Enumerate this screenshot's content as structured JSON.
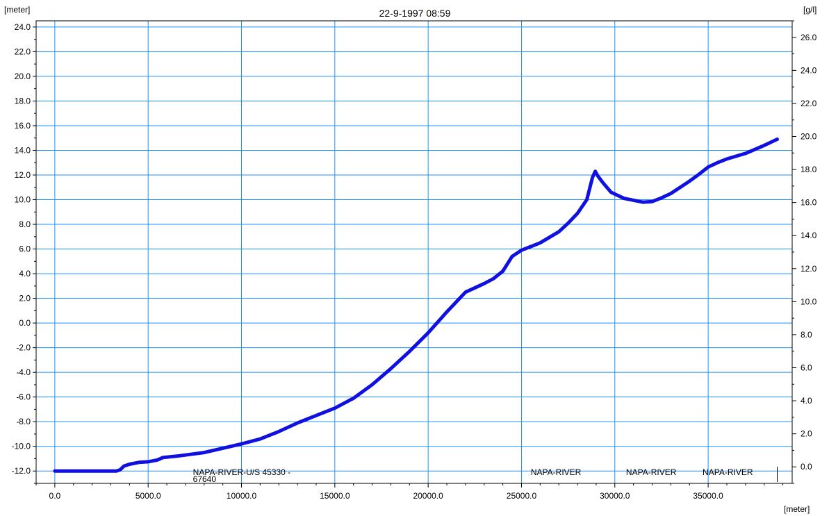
{
  "chart_data": {
    "type": "line",
    "title": "22-9-1997 08:59",
    "y_left_unit": "[meter]",
    "y_right_unit": "[g/l]",
    "x_unit": "[meter]",
    "xlim": [
      -1000,
      39500
    ],
    "ylim_left": [
      -13.0,
      24.5
    ],
    "ylim_right": [
      -1.0,
      27.0
    ],
    "grid": true,
    "x_ticks": [
      "0.0",
      "5000.0",
      "10000.0",
      "15000.0",
      "20000.0",
      "25000.0",
      "30000.0",
      "35000.0"
    ],
    "x_tick_values": [
      0,
      5000,
      10000,
      15000,
      20000,
      25000,
      30000,
      35000
    ],
    "y_left_ticks": [
      "-12.0",
      "-10.0",
      "-8.0",
      "-6.0",
      "-4.0",
      "-2.0",
      "0.0",
      "2.0",
      "4.0",
      "6.0",
      "8.0",
      "10.0",
      "12.0",
      "14.0",
      "16.0",
      "18.0",
      "20.0",
      "22.0",
      "24.0"
    ],
    "y_left_tick_values": [
      -12,
      -10,
      -8,
      -6,
      -4,
      -2,
      0,
      2,
      4,
      6,
      8,
      10,
      12,
      14,
      16,
      18,
      20,
      22,
      24
    ],
    "y_right_ticks": [
      "0.0",
      "2.0",
      "4.0",
      "6.0",
      "8.0",
      "10.0",
      "12.0",
      "14.0",
      "16.0",
      "18.0",
      "20.0",
      "22.0",
      "24.0",
      "26.0"
    ],
    "y_right_tick_values": [
      0,
      2,
      4,
      6,
      8,
      10,
      12,
      14,
      16,
      18,
      20,
      22,
      24,
      26
    ],
    "branch_labels": [
      {
        "text": "NAPA-RIVER-U/S  45330 -",
        "x": 7400
      },
      {
        "text": "67640",
        "x": 7400,
        "second_line": true
      },
      {
        "text": "NAPA-RIVER",
        "x": 25500
      },
      {
        "text": "NAPA-RIVER",
        "x": 30600
      },
      {
        "text": "NAPA-RIVER",
        "x": 34700
      }
    ],
    "series": [
      {
        "color": "#1010e0",
        "axis": "left",
        "x": [
          0,
          3300,
          3500,
          3700,
          4000,
          4500,
          5000,
          5500,
          5800,
          6500,
          7000,
          8000,
          9000,
          10000,
          11000,
          12000,
          13000,
          14000,
          15000,
          16000,
          17000,
          18000,
          19000,
          20000,
          21000,
          22000,
          23000,
          23500,
          24000,
          24500,
          25000,
          26000,
          27000,
          27500,
          28000,
          28500,
          28800,
          28950,
          29100,
          29400,
          29800,
          30500,
          31500,
          32000,
          32500,
          33000,
          33500,
          34000,
          34500,
          35000,
          35500,
          36000,
          37000,
          38000,
          38700
        ],
        "y": [
          -12.0,
          -12.0,
          -11.9,
          -11.6,
          -11.45,
          -11.3,
          -11.25,
          -11.1,
          -10.9,
          -10.8,
          -10.7,
          -10.5,
          -10.15,
          -9.8,
          -9.4,
          -8.8,
          -8.1,
          -7.5,
          -6.9,
          -6.1,
          -5.0,
          -3.7,
          -2.3,
          -0.8,
          0.9,
          2.5,
          3.2,
          3.6,
          4.2,
          5.4,
          5.9,
          6.5,
          7.4,
          8.1,
          8.9,
          10.0,
          11.8,
          12.3,
          11.9,
          11.3,
          10.6,
          10.1,
          9.8,
          9.85,
          10.15,
          10.5,
          11.0,
          11.5,
          12.05,
          12.65,
          13.0,
          13.3,
          13.75,
          14.4,
          14.9
        ]
      }
    ]
  }
}
